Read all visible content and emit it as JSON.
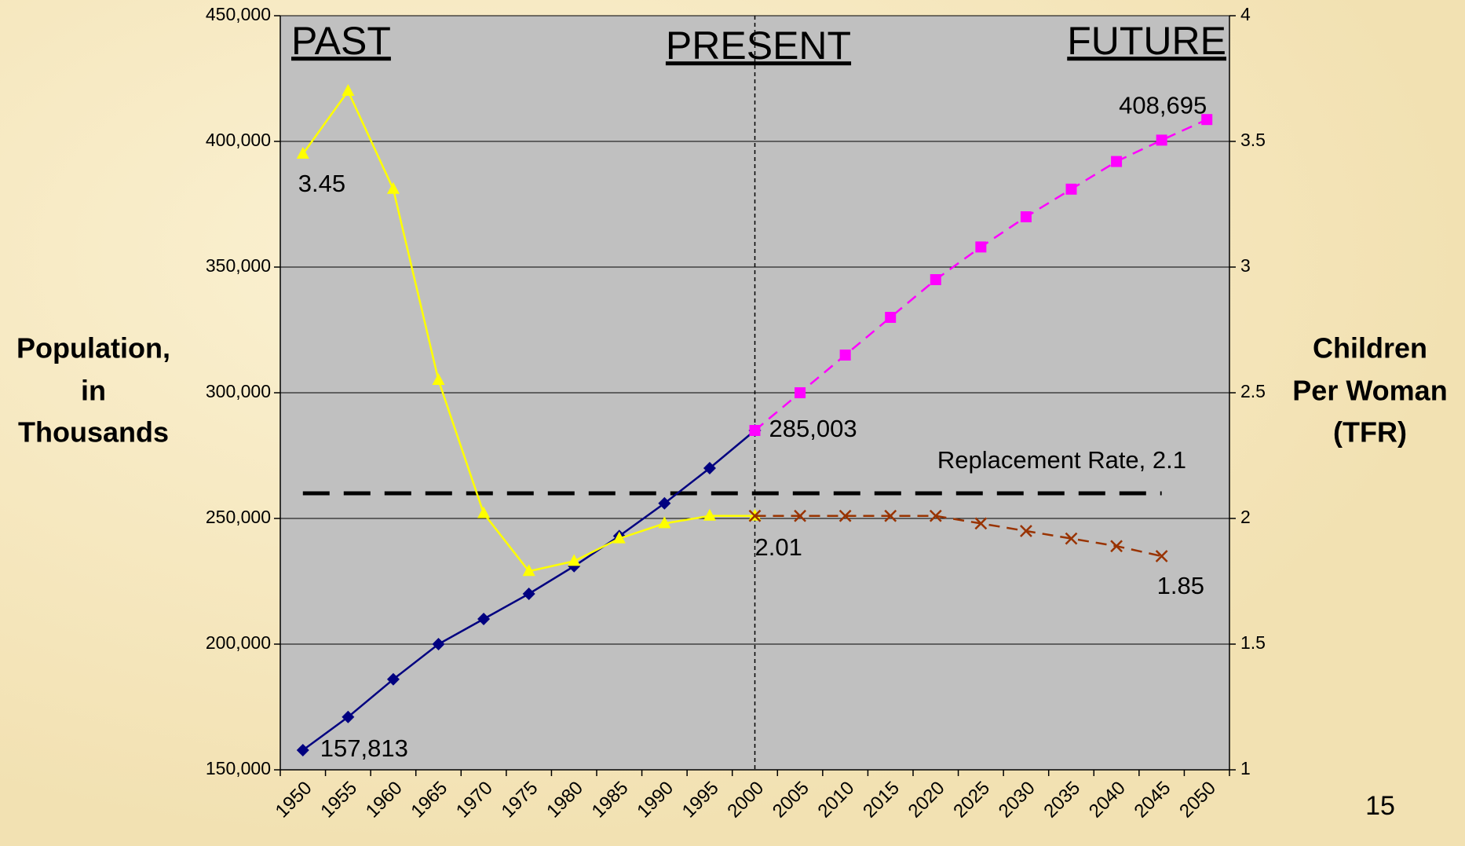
{
  "chart_data": {
    "type": "line",
    "headings": [
      "PAST",
      "PRESENT",
      "FUTURE"
    ],
    "y_label": [
      "Population,",
      "in",
      "Thousands"
    ],
    "y2_label": [
      "Children",
      "Per Woman",
      "(TFR)"
    ],
    "page_number": "15",
    "categories": [
      "1950",
      "1955",
      "1960",
      "1965",
      "1970",
      "1975",
      "1980",
      "1985",
      "1990",
      "1995",
      "2000",
      "2005",
      "2010",
      "2015",
      "2020",
      "2025",
      "2030",
      "2035",
      "2040",
      "2045",
      "2050"
    ],
    "ylim": [
      150000,
      450000
    ],
    "yticks": [
      {
        "value": 150000,
        "label": "150,000"
      },
      {
        "value": 200000,
        "label": "200,000"
      },
      {
        "value": 250000,
        "label": "250,000"
      },
      {
        "value": 300000,
        "label": "300,000"
      },
      {
        "value": 350000,
        "label": "350,000"
      },
      {
        "value": 400000,
        "label": "400,000"
      },
      {
        "value": 450000,
        "label": "450,000"
      }
    ],
    "y2lim": [
      1,
      4
    ],
    "y2ticks": [
      1,
      1.5,
      2,
      2.5,
      3,
      3.5,
      4
    ],
    "grid": true,
    "present_category": 10,
    "reference_line": {
      "value": 2.1,
      "label": "Replacement Rate, 2.1",
      "axis": "y2",
      "color": "#000000",
      "from": 0,
      "to": 19
    },
    "series": [
      {
        "color": "#000080",
        "marker": "diamond",
        "dashed": false,
        "values": [
          157813,
          171000,
          186000,
          200000,
          210000,
          220000,
          231000,
          243000,
          256000,
          270000,
          285003,
          null,
          null,
          null,
          null,
          null,
          null,
          null,
          null,
          null,
          null
        ],
        "value_labels": [
          "157,813",
          null,
          null,
          null,
          null,
          null,
          null,
          null,
          null,
          null,
          null,
          null,
          null,
          null,
          null,
          null,
          null,
          null,
          null,
          null,
          null
        ]
      },
      {
        "color": "#ff00ff",
        "marker": "square",
        "dashed": true,
        "values": [
          null,
          null,
          null,
          null,
          null,
          null,
          null,
          null,
          null,
          null,
          285003,
          300000,
          315000,
          330000,
          345000,
          358000,
          370000,
          381000,
          392000,
          400500,
          408695
        ],
        "value_labels": [
          null,
          null,
          null,
          null,
          null,
          null,
          null,
          null,
          null,
          null,
          "285,003",
          null,
          null,
          null,
          null,
          null,
          null,
          null,
          null,
          null,
          "408,695"
        ]
      },
      {
        "color": "#ffff00",
        "marker": "triangle",
        "dashed": false,
        "axis": "y2",
        "values": [
          3.45,
          3.7,
          3.31,
          2.55,
          2.02,
          1.79,
          1.83,
          1.92,
          1.98,
          2.01,
          2.01,
          null,
          null,
          null,
          null,
          null,
          null,
          null,
          null,
          null,
          null
        ],
        "value_labels": [
          "3.45",
          null,
          null,
          null,
          null,
          null,
          null,
          null,
          null,
          null,
          null,
          null,
          null,
          null,
          null,
          null,
          null,
          null,
          null,
          null,
          null
        ]
      },
      {
        "color": "#993300",
        "marker": "x",
        "dashed": true,
        "axis": "y2",
        "values": [
          null,
          null,
          null,
          null,
          null,
          null,
          null,
          null,
          null,
          null,
          2.01,
          2.01,
          2.01,
          2.01,
          2.01,
          1.98,
          1.95,
          1.92,
          1.89,
          1.85,
          null
        ],
        "value_labels": [
          null,
          null,
          null,
          null,
          null,
          null,
          null,
          null,
          null,
          null,
          "2.01",
          null,
          null,
          null,
          null,
          null,
          null,
          null,
          null,
          "1.85",
          null
        ]
      }
    ]
  }
}
